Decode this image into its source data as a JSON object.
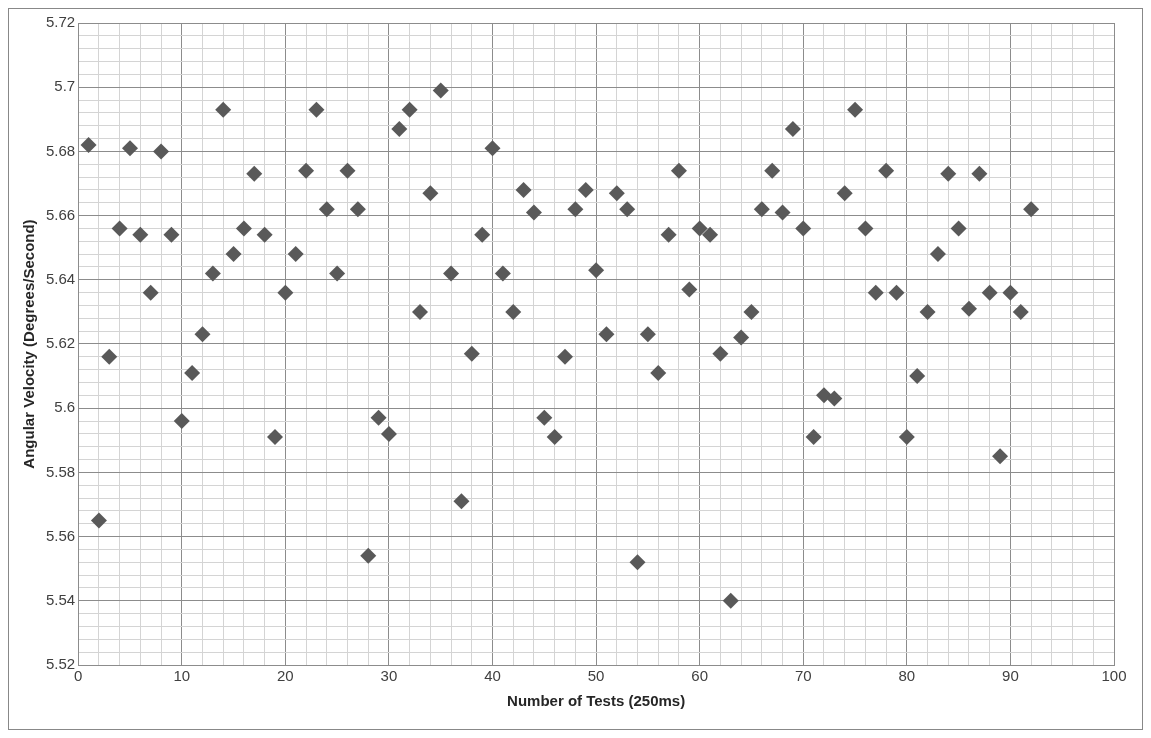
{
  "chart_data": {
    "type": "scatter",
    "xlabel": "Number of Tests (250ms)",
    "ylabel": "Angular Velocity (Degrees/Second)",
    "x": [
      1,
      2,
      3,
      4,
      5,
      6,
      7,
      8,
      9,
      10,
      11,
      12,
      13,
      14,
      15,
      16,
      17,
      18,
      19,
      20,
      21,
      22,
      23,
      24,
      25,
      26,
      27,
      28,
      29,
      30,
      31,
      32,
      33,
      34,
      35,
      36,
      37,
      38,
      39,
      40,
      41,
      42,
      43,
      44,
      45,
      46,
      47,
      48,
      49,
      50,
      51,
      52,
      53,
      54,
      55,
      56,
      57,
      58,
      59,
      60,
      61,
      62,
      63,
      64,
      65,
      66,
      67,
      68,
      69,
      70,
      71,
      72,
      73,
      74,
      75,
      76,
      77,
      78,
      79,
      80,
      81,
      82,
      83,
      84,
      85,
      86,
      87,
      88,
      89,
      90,
      91,
      92
    ],
    "series": [
      {
        "color": "#595959",
        "values": [
          5.682,
          5.565,
          5.616,
          5.656,
          5.681,
          5.654,
          5.636,
          5.68,
          5.654,
          5.596,
          5.611,
          5.623,
          5.642,
          5.693,
          5.648,
          5.656,
          5.673,
          5.654,
          5.591,
          5.636,
          5.648,
          5.674,
          5.693,
          5.662,
          5.642,
          5.674,
          5.662,
          5.554,
          5.597,
          5.592,
          5.687,
          5.693,
          5.63,
          5.667,
          5.699,
          5.642,
          5.571,
          5.617,
          5.654,
          5.681,
          5.642,
          5.63,
          5.668,
          5.661,
          5.597,
          5.591,
          5.616,
          5.662,
          5.668,
          5.643,
          5.623,
          5.667,
          5.662,
          5.552,
          5.623,
          5.611,
          5.654,
          5.674,
          5.637,
          5.656,
          5.654,
          5.617,
          5.54,
          5.622,
          5.63,
          5.662,
          5.674,
          5.661,
          5.687,
          5.656,
          5.591,
          5.604,
          5.603,
          5.667,
          5.693,
          5.656,
          5.636,
          5.674,
          5.636,
          5.591,
          5.61,
          5.63,
          5.648,
          5.673,
          5.656,
          5.631,
          5.673,
          5.636,
          5.585,
          5.636,
          5.63,
          5.662
        ]
      }
    ],
    "xlim": [
      0,
      100
    ],
    "xticks": [
      0,
      {
        "value": 2,
        "label": null
      },
      {
        "value": 4,
        "label": null
      },
      {
        "value": 6,
        "label": null
      },
      {
        "value": 8,
        "label": null
      },
      10,
      {
        "value": 12,
        "label": null
      },
      {
        "value": 14,
        "label": null
      },
      {
        "value": 16,
        "label": null
      },
      {
        "value": 18,
        "label": null
      },
      20,
      {
        "value": 22,
        "label": null
      },
      {
        "value": 24,
        "label": null
      },
      {
        "value": 26,
        "label": null
      },
      {
        "value": 28,
        "label": null
      },
      30,
      {
        "value": 32,
        "label": null
      },
      {
        "value": 34,
        "label": null
      },
      {
        "value": 36,
        "label": null
      },
      {
        "value": 38,
        "label": null
      },
      40,
      {
        "value": 42,
        "label": null
      },
      {
        "value": 44,
        "label": null
      },
      {
        "value": 46,
        "label": null
      },
      {
        "value": 48,
        "label": null
      },
      50,
      {
        "value": 52,
        "label": null
      },
      {
        "value": 54,
        "label": null
      },
      {
        "value": 56,
        "label": null
      },
      {
        "value": 58,
        "label": null
      },
      60,
      {
        "value": 62,
        "label": null
      },
      {
        "value": 64,
        "label": null
      },
      {
        "value": 66,
        "label": null
      },
      {
        "value": 68,
        "label": null
      },
      70,
      {
        "value": 72,
        "label": null
      },
      {
        "value": 74,
        "label": null
      },
      {
        "value": 76,
        "label": null
      },
      {
        "value": 78,
        "label": null
      },
      80,
      {
        "value": 82,
        "label": null
      },
      {
        "value": 84,
        "label": null
      },
      {
        "value": 86,
        "label": null
      },
      {
        "value": 88,
        "label": null
      },
      90,
      {
        "value": 92,
        "label": null
      },
      {
        "value": 94,
        "label": null
      },
      {
        "value": 96,
        "label": null
      },
      {
        "value": 98,
        "label": null
      },
      100
    ],
    "ylim": [
      5.52,
      5.72
    ],
    "yticks": [
      5.52,
      {
        "value": 5.524,
        "label": null
      },
      {
        "value": 5.528,
        "label": null
      },
      {
        "value": 5.532,
        "label": null
      },
      {
        "value": 5.536,
        "label": null
      },
      5.54,
      {
        "value": 5.544,
        "label": null
      },
      {
        "value": 5.548,
        "label": null
      },
      {
        "value": 5.552,
        "label": null
      },
      {
        "value": 5.556,
        "label": null
      },
      5.56,
      {
        "value": 5.564,
        "label": null
      },
      {
        "value": 5.568,
        "label": null
      },
      {
        "value": 5.572,
        "label": null
      },
      {
        "value": 5.576,
        "label": null
      },
      5.58,
      {
        "value": 5.584,
        "label": null
      },
      {
        "value": 5.588,
        "label": null
      },
      {
        "value": 5.592,
        "label": null
      },
      {
        "value": 5.596,
        "label": null
      },
      5.6,
      {
        "value": 5.604,
        "label": null
      },
      {
        "value": 5.608,
        "label": null
      },
      {
        "value": 5.612,
        "label": null
      },
      {
        "value": 5.616,
        "label": null
      },
      5.62,
      {
        "value": 5.624,
        "label": null
      },
      {
        "value": 5.628,
        "label": null
      },
      {
        "value": 5.632,
        "label": null
      },
      {
        "value": 5.636,
        "label": null
      },
      5.64,
      {
        "value": 5.644,
        "label": null
      },
      {
        "value": 5.648,
        "label": null
      },
      {
        "value": 5.652,
        "label": null
      },
      {
        "value": 5.656,
        "label": null
      },
      5.66,
      {
        "value": 5.664,
        "label": null
      },
      {
        "value": 5.668,
        "label": null
      },
      {
        "value": 5.672,
        "label": null
      },
      {
        "value": 5.676,
        "label": null
      },
      5.68,
      {
        "value": 5.684,
        "label": null
      },
      {
        "value": 5.688,
        "label": null
      },
      {
        "value": 5.692,
        "label": null
      },
      {
        "value": 5.696,
        "label": null
      },
      5.7,
      {
        "value": 5.704,
        "label": null
      },
      {
        "value": 5.708,
        "label": null
      },
      {
        "value": 5.712,
        "label": null
      },
      {
        "value": 5.716,
        "label": null
      },
      5.72
    ],
    "grid": true,
    "legend": false,
    "marker": "diamond"
  }
}
